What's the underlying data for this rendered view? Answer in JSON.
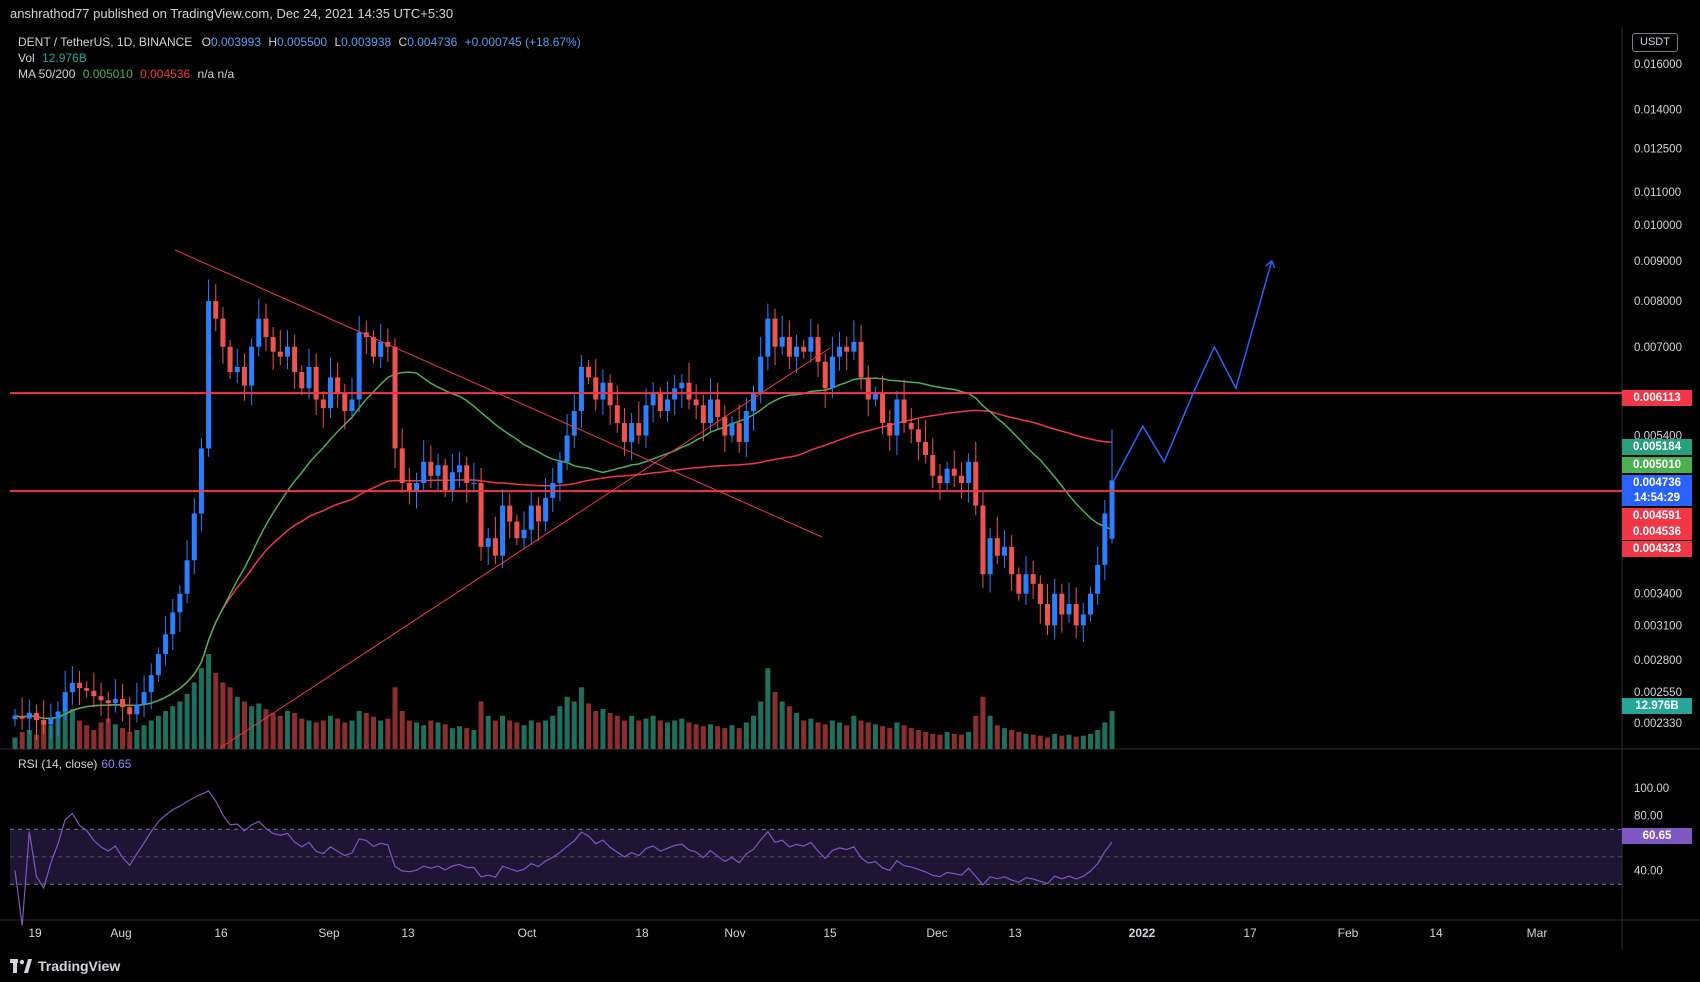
{
  "header": {
    "published_text": "anshrathod77 published on TradingView.com, Dec 24, 2021 14:35 UTC+5:30"
  },
  "legend": {
    "symbol": "DENT / TetherUS, 1D, BINANCE",
    "o_label": "O",
    "o_value": "0.003993",
    "h_label": "H",
    "h_value": "0.005500",
    "l_label": "L",
    "l_value": "0.003938",
    "c_label": "C",
    "c_value": "0.004736",
    "change": "+0.000745 (+18.67%)",
    "vol_label": "Vol",
    "vol_value": "12.976B",
    "ma_label": "MA 50/200",
    "ma50_value": "0.005010",
    "ma200_value": "0.004536",
    "ma_extra": "n/a  n/a"
  },
  "rsi_legend": {
    "label": "RSI (14, close)",
    "value": "60.65"
  },
  "currency_badge": "USDT",
  "brand": {
    "name": "TradingView"
  },
  "price_tags": [
    {
      "text": "0.006113",
      "color": "#f23645",
      "price": 0.006113
    },
    {
      "text": "0.005184",
      "color": "#26a17b",
      "price": 0.005184
    },
    {
      "text": "0.005010",
      "color": "#4caf50",
      "price": 0.00501
    },
    {
      "text": "0.004736",
      "color": "#2962ff",
      "price": 0.004736
    },
    {
      "text": "14:54:29",
      "color": "#2962ff",
      "price": 0.004736
    },
    {
      "text": "0.004591",
      "color": "#f23645",
      "price": 0.004591
    },
    {
      "text": "0.004536",
      "color": "#f23645",
      "price": 0.004536
    },
    {
      "text": "0.004323",
      "color": "#f23645",
      "price": 0.004323
    },
    {
      "text": "12.976B",
      "color": "#26a69a",
      "price": null
    },
    {
      "text": "60.65",
      "color": "#7e57c2",
      "price": null
    }
  ],
  "colors": {
    "up": "#2a7fff",
    "down": "#ef5350",
    "ma50": "#4caf50",
    "ma200": "#f23645",
    "rsi": "#7e57c2",
    "projection": "#2962ff"
  },
  "chart_data": {
    "type": "candlestick",
    "scale": "log",
    "price_ticks": [
      "0.016000",
      "0.014000",
      "0.012500",
      "0.011000",
      "0.010000",
      "0.009000",
      "0.008000",
      "0.007000",
      "0.005400",
      "0.003400",
      "0.003100",
      "0.002800",
      "0.002550",
      "0.002330"
    ],
    "x_ticks": [
      "19",
      "Aug",
      "16",
      "Sep",
      "13",
      "Oct",
      "18",
      "Nov",
      "15",
      "Dec",
      "13",
      "2022",
      "17",
      "Feb",
      "14",
      "Mar"
    ],
    "rsi_ticks": [
      "100.00",
      "80.00",
      "40.00"
    ],
    "rsi_band": [
      30,
      70
    ],
    "horizontal_levels": [
      0.006113,
      0.00459
    ],
    "candles_close_daily": [
      0.00238,
      0.00236,
      0.0024,
      0.00235,
      0.00232,
      0.00236,
      0.00241,
      0.00255,
      0.00262,
      0.00258,
      0.00256,
      0.00252,
      0.00249,
      0.00247,
      0.0025,
      0.00244,
      0.00239,
      0.00246,
      0.00255,
      0.00268,
      0.00285,
      0.00302,
      0.00322,
      0.0034,
      0.00375,
      0.0043,
      0.0052,
      0.008,
      0.0076,
      0.007,
      0.0065,
      0.0066,
      0.00625,
      0.007,
      0.0076,
      0.0072,
      0.0069,
      0.0068,
      0.007,
      0.0065,
      0.0062,
      0.0066,
      0.006,
      0.00585,
      0.0064,
      0.0061,
      0.0058,
      0.006,
      0.0073,
      0.0072,
      0.0068,
      0.0071,
      0.007,
      0.0052,
      0.0047,
      0.0046,
      0.0047,
      0.005,
      0.0048,
      0.00495,
      0.0046,
      0.00485,
      0.00495,
      0.0047,
      0.0047,
      0.0039,
      0.004,
      0.0038,
      0.0044,
      0.0042,
      0.004,
      0.0041,
      0.0044,
      0.0042,
      0.0045,
      0.0047,
      0.005,
      0.0054,
      0.0058,
      0.0066,
      0.0064,
      0.006,
      0.0063,
      0.0059,
      0.0056,
      0.0053,
      0.0056,
      0.0054,
      0.0059,
      0.0061,
      0.0058,
      0.006,
      0.0062,
      0.0063,
      0.006,
      0.0059,
      0.0056,
      0.006,
      0.0057,
      0.0054,
      0.0056,
      0.0053,
      0.0058,
      0.0061,
      0.0068,
      0.0076,
      0.007,
      0.0072,
      0.0068,
      0.007,
      0.0069,
      0.0072,
      0.0067,
      0.0062,
      0.0068,
      0.007,
      0.0069,
      0.0071,
      0.0064,
      0.006,
      0.0061,
      0.0056,
      0.0054,
      0.006,
      0.0056,
      0.0055,
      0.0053,
      0.0051,
      0.0048,
      0.0047,
      0.0049,
      0.0048,
      0.0047,
      0.005,
      0.0044,
      0.0036,
      0.004,
      0.0038,
      0.0039,
      0.0036,
      0.0034,
      0.0036,
      0.0035,
      0.0033,
      0.0031,
      0.0034,
      0.0032,
      0.0033,
      0.0031,
      0.0032,
      0.0034,
      0.0037,
      0.0043,
      0.004736
    ],
    "volume_relative": [
      0.12,
      0.18,
      0.2,
      0.15,
      0.3,
      0.25,
      0.35,
      0.4,
      0.42,
      0.3,
      0.25,
      0.2,
      0.28,
      0.32,
      0.26,
      0.22,
      0.18,
      0.2,
      0.25,
      0.3,
      0.35,
      0.4,
      0.45,
      0.5,
      0.58,
      0.7,
      0.85,
      1.0,
      0.8,
      0.7,
      0.65,
      0.55,
      0.5,
      0.45,
      0.48,
      0.42,
      0.38,
      0.35,
      0.4,
      0.38,
      0.32,
      0.3,
      0.28,
      0.3,
      0.35,
      0.32,
      0.28,
      0.3,
      0.4,
      0.38,
      0.34,
      0.3,
      0.32,
      0.65,
      0.4,
      0.3,
      0.28,
      0.25,
      0.3,
      0.28,
      0.26,
      0.22,
      0.24,
      0.22,
      0.2,
      0.5,
      0.35,
      0.3,
      0.35,
      0.3,
      0.28,
      0.25,
      0.3,
      0.28,
      0.3,
      0.35,
      0.45,
      0.55,
      0.5,
      0.65,
      0.48,
      0.4,
      0.42,
      0.38,
      0.35,
      0.3,
      0.35,
      0.3,
      0.32,
      0.35,
      0.3,
      0.28,
      0.3,
      0.32,
      0.28,
      0.26,
      0.24,
      0.26,
      0.24,
      0.22,
      0.25,
      0.22,
      0.28,
      0.35,
      0.5,
      0.85,
      0.6,
      0.5,
      0.45,
      0.38,
      0.3,
      0.32,
      0.28,
      0.26,
      0.3,
      0.28,
      0.25,
      0.35,
      0.3,
      0.28,
      0.26,
      0.24,
      0.22,
      0.28,
      0.25,
      0.22,
      0.2,
      0.18,
      0.16,
      0.15,
      0.18,
      0.16,
      0.15,
      0.18,
      0.35,
      0.55,
      0.35,
      0.25,
      0.22,
      0.2,
      0.18,
      0.16,
      0.15,
      0.14,
      0.12,
      0.16,
      0.14,
      0.15,
      0.13,
      0.14,
      0.16,
      0.2,
      0.28,
      0.4
    ],
    "projection_path_prices": [
      0.004736,
      0.00555,
      0.005,
      0.0061,
      0.007,
      0.0062,
      0.009
    ],
    "projection_path_day_offsets": [
      0,
      4,
      7,
      11,
      14,
      17,
      22
    ]
  }
}
